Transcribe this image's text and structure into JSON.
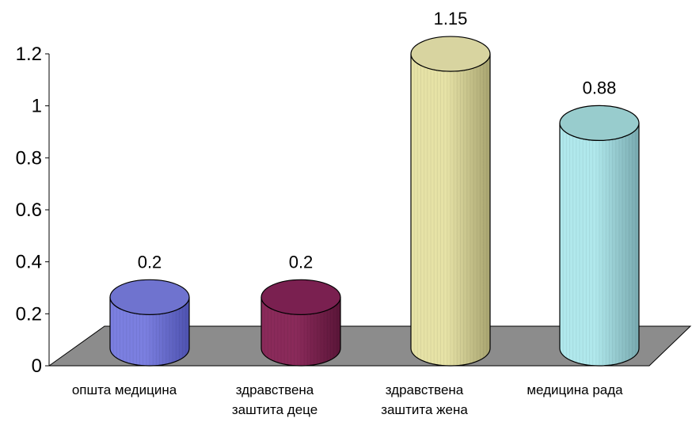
{
  "chart_data": {
    "type": "bar",
    "title": "",
    "xlabel": "",
    "ylabel": "",
    "ylim": [
      0,
      1.2
    ],
    "yticks": [
      0,
      0.2,
      0.4,
      0.6,
      0.8,
      1,
      1.2
    ],
    "ytick_labels": [
      "0",
      "0.2",
      "0.4",
      "0.6",
      "0.8",
      "1",
      "1.2"
    ],
    "categories": [
      [
        "општа медицина"
      ],
      [
        "здравствена",
        "заштита деце"
      ],
      [
        "здравствена",
        "заштита жена"
      ],
      [
        "медицина рада"
      ]
    ],
    "values": [
      0.2,
      0.2,
      1.15,
      0.88
    ],
    "data_labels": [
      "0.2",
      "0.2",
      "1.15",
      "0.88"
    ],
    "colors": {
      "bars": [
        "#7b7fe0",
        "#8a2a5a",
        "#e6e2a6",
        "#b0e8ec"
      ],
      "bars_dark": [
        "#4e52b0",
        "#5a1538",
        "#a8a470",
        "#78aab0"
      ],
      "bars_top": [
        "#6f73cf",
        "#7a2050",
        "#d8d4a0",
        "#98cccd"
      ],
      "floor": "#8c8c8c"
    },
    "grid": false,
    "legend": "none"
  }
}
